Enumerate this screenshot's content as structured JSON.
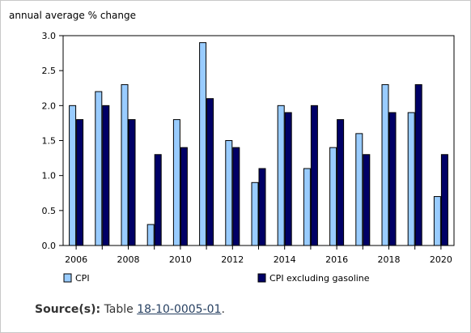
{
  "chart_data": {
    "type": "bar",
    "ylabel": "annual average % change",
    "xlabel": "",
    "ylim": [
      0,
      3.0
    ],
    "yticks": [
      "0.0",
      "0.5",
      "1.0",
      "1.5",
      "2.0",
      "2.5",
      "3.0"
    ],
    "categories": [
      "2006",
      "2007",
      "2008",
      "2009",
      "2010",
      "2011",
      "2012",
      "2013",
      "2014",
      "2015",
      "2016",
      "2017",
      "2018",
      "2019",
      "2020"
    ],
    "xtick_labels": [
      "2006",
      "",
      "2008",
      "",
      "2010",
      "",
      "2012",
      "",
      "2014",
      "",
      "2016",
      "",
      "2018",
      "",
      "2020"
    ],
    "series": [
      {
        "name": "CPI",
        "color": "#99ccff",
        "values": [
          2.0,
          2.2,
          2.3,
          0.3,
          1.8,
          2.9,
          1.5,
          0.9,
          2.0,
          1.1,
          1.4,
          1.6,
          2.3,
          1.9,
          0.7
        ]
      },
      {
        "name": "CPI excluding gasoline",
        "color": "#000066",
        "values": [
          1.8,
          2.0,
          1.8,
          1.3,
          1.4,
          2.1,
          1.4,
          1.1,
          1.9,
          2.0,
          1.8,
          1.3,
          1.9,
          2.3,
          1.3
        ]
      }
    ],
    "legend_position": "bottom",
    "grid": false
  },
  "source": {
    "label": "Source(s):",
    "text": "Table",
    "link_text": "18-10-0005-01",
    "suffix": "."
  }
}
